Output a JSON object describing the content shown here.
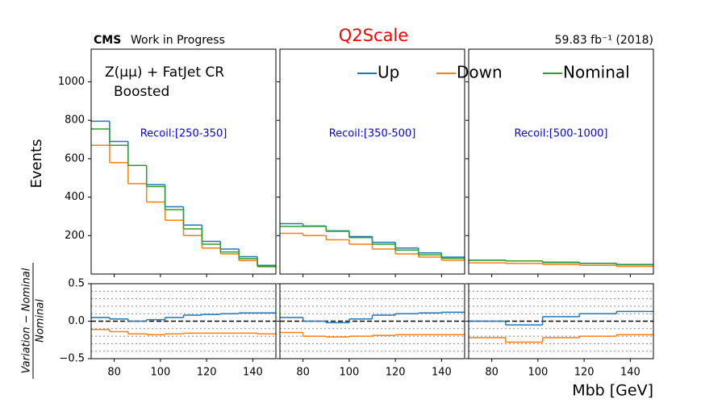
{
  "chart_data": {
    "type": "step",
    "title": "Q2Scale",
    "experiment": "CMS",
    "status": "Work in Progress",
    "lumi": "59.83 fb⁻¹ (2018)",
    "annotation": [
      "Z(μμ) + FatJet CR",
      "Boosted"
    ],
    "ylabel": "Events",
    "ratio_ylabel_numerator": "Variation − Nominal",
    "ratio_ylabel_denominator": "Nominal",
    "xlabel": "Mbb [GeV]",
    "legend": [
      {
        "name": "Up",
        "color": "#1f77b4"
      },
      {
        "name": "Down",
        "color": "#ff7f0e"
      },
      {
        "name": "Nominal",
        "color": "#2ca02c"
      }
    ],
    "xlim": [
      70,
      150
    ],
    "xticks": [
      80,
      100,
      120,
      140
    ],
    "ylim": [
      0,
      1170
    ],
    "yticks": [
      200,
      400,
      600,
      800,
      1000
    ],
    "ratio_ylim": [
      -0.5,
      0.5
    ],
    "ratio_yticks": [
      {
        "value": -0.5,
        "label": "−0.5"
      },
      {
        "value": 0,
        "label": "0.0"
      },
      0.5
    ],
    "ratio_grid": [
      -0.4,
      -0.3,
      -0.2,
      -0.1,
      0.1,
      0.2,
      0.3,
      0.4
    ],
    "panels": [
      {
        "label": "Recoil:[250-350]",
        "bins": [
          70,
          78,
          86,
          94,
          102,
          110,
          118,
          126,
          134,
          142,
          150
        ],
        "series": [
          [
            795,
            690,
            565,
            465,
            350,
            255,
            170,
            130,
            90,
            45
          ],
          [
            670,
            580,
            470,
            375,
            280,
            200,
            135,
            105,
            70,
            38
          ],
          [
            755,
            670,
            565,
            455,
            335,
            235,
            155,
            115,
            80,
            40
          ]
        ],
        "ratio": [
          [
            0.05,
            0.03,
            0.0,
            0.02,
            0.05,
            0.08,
            0.09,
            0.1,
            0.11,
            0.11
          ],
          [
            -0.11,
            -0.14,
            -0.17,
            -0.18,
            -0.17,
            -0.16,
            -0.16,
            -0.16,
            -0.16,
            -0.17
          ]
        ]
      },
      {
        "label": "Recoil:[350-500]",
        "bins": [
          70,
          80,
          90,
          100,
          110,
          120,
          130,
          140,
          150
        ],
        "series": [
          [
            262,
            250,
            225,
            195,
            165,
            135,
            110,
            88
          ],
          [
            212,
            200,
            178,
            155,
            130,
            105,
            88,
            72
          ],
          [
            248,
            248,
            222,
            190,
            155,
            125,
            100,
            82
          ]
        ],
        "ratio": [
          [
            0.05,
            0.0,
            -0.02,
            0.03,
            0.08,
            0.1,
            0.11,
            0.12
          ],
          [
            -0.15,
            -0.2,
            -0.21,
            -0.2,
            -0.19,
            -0.18,
            -0.18,
            -0.18
          ]
        ]
      },
      {
        "label": "Recoil:[500-1000]",
        "bins": [
          70,
          86,
          102,
          118,
          134,
          150
        ],
        "series": [
          [
            72,
            68,
            60,
            56,
            50
          ],
          [
            58,
            55,
            50,
            45,
            40
          ],
          [
            72,
            68,
            62,
            55,
            48
          ]
        ],
        "ratio": [
          [
            0.0,
            -0.05,
            0.06,
            0.1,
            0.13
          ],
          [
            -0.22,
            -0.28,
            -0.22,
            -0.2,
            -0.18
          ]
        ]
      }
    ]
  }
}
